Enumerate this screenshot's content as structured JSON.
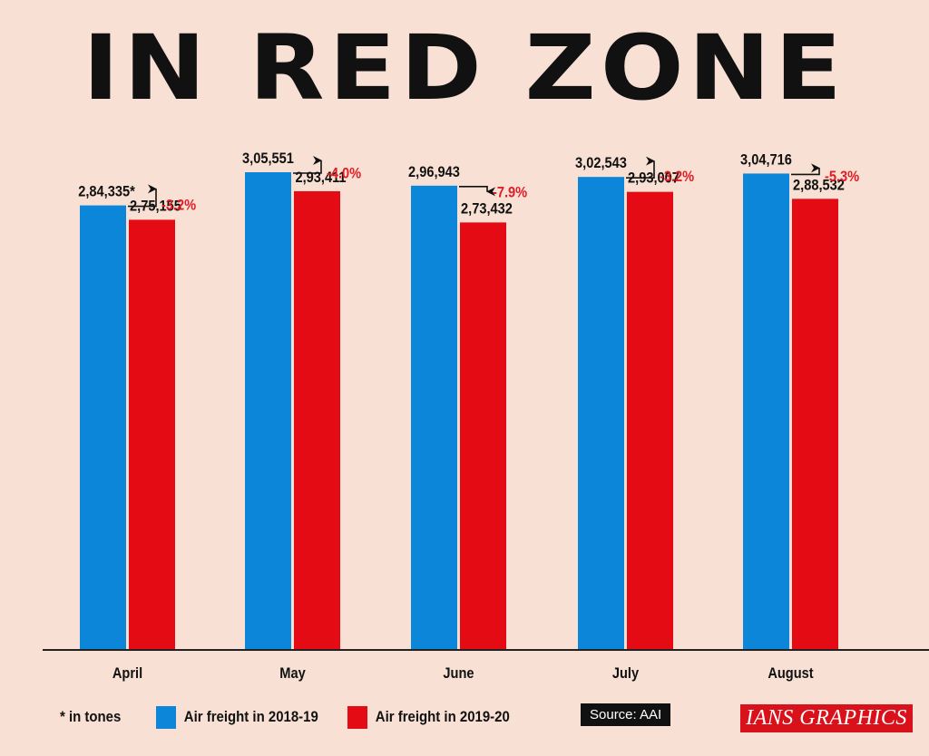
{
  "title": "IN RED ZONE",
  "colors": {
    "series_2018": "#0b86d9",
    "series_2019": "#e40b14",
    "change": "#e01c24"
  },
  "chart_data": {
    "type": "bar",
    "title": "IN RED ZONE",
    "categories": [
      "April",
      "May",
      "June",
      "July",
      "August"
    ],
    "series": [
      {
        "name": "Air freight in 2018-19",
        "values": [
          284335,
          305551,
          296943,
          302543,
          304716
        ],
        "labels": [
          "2,84,335*",
          "3,05,551",
          "2,96,943",
          "3,02,543",
          "3,04,716"
        ]
      },
      {
        "name": "Air freight in 2019-20",
        "values": [
          275155,
          293411,
          273432,
          293007,
          288532
        ],
        "labels": [
          "2,75,155",
          "2,93,411",
          "2,73,432",
          "2,93,007",
          "2,88,532"
        ]
      }
    ],
    "changes": [
      "-3.2%",
      "-4.0%",
      "-7.9%",
      "-3.2%",
      "-5.3%"
    ],
    "legend_position": "bottom",
    "grid": false
  },
  "footnote": "* in tones",
  "source": "Source: AAI",
  "credit": "IANS GRAPHICS"
}
